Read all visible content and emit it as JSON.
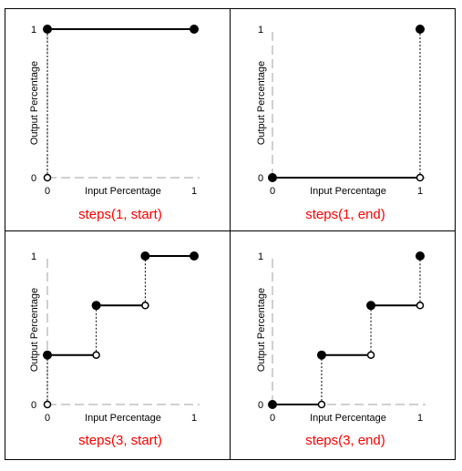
{
  "figure": {
    "colors": {
      "caption": "#ff0000",
      "lines": "#000000",
      "axis": "#a0a0a0",
      "frame": "#000000"
    },
    "panels": [
      {
        "caption": "steps(1, start)",
        "xlabel": "Input Percentage",
        "ylabel": "Output Percentage",
        "x_ticks": [
          "0",
          "1"
        ],
        "y_ticks": [
          "0",
          "1"
        ],
        "steps": 1,
        "position": "start",
        "segments": [
          [
            0,
            1,
            1
          ]
        ],
        "filled_points": [
          [
            0,
            1
          ],
          [
            1,
            1
          ]
        ],
        "open_points": [
          [
            0,
            0
          ]
        ],
        "dotted_jumps": [
          [
            0,
            0,
            1
          ]
        ]
      },
      {
        "caption": "steps(1, end)",
        "xlabel": "Input Percentage",
        "ylabel": "Output Percentage",
        "x_ticks": [
          "0",
          "1"
        ],
        "y_ticks": [
          "0",
          "1"
        ],
        "steps": 1,
        "position": "end",
        "segments": [
          [
            0,
            1,
            0
          ]
        ],
        "filled_points": [
          [
            0,
            0
          ],
          [
            1,
            1
          ]
        ],
        "open_points": [
          [
            1,
            0
          ]
        ],
        "dotted_jumps": [
          [
            1,
            0,
            1
          ]
        ]
      },
      {
        "caption": "steps(3, start)",
        "xlabel": "Input Percentage",
        "ylabel": "Output Percentage",
        "x_ticks": [
          "0",
          "1"
        ],
        "y_ticks": [
          "0",
          "1"
        ],
        "steps": 3,
        "position": "start",
        "segments": [
          [
            0,
            0.333,
            0.333
          ],
          [
            0.333,
            0.667,
            0.667
          ],
          [
            0.667,
            1,
            1
          ]
        ],
        "filled_points": [
          [
            0,
            0.333
          ],
          [
            0.333,
            0.667
          ],
          [
            0.667,
            1
          ],
          [
            1,
            1
          ]
        ],
        "open_points": [
          [
            0,
            0
          ],
          [
            0.333,
            0.333
          ],
          [
            0.667,
            0.667
          ]
        ],
        "dotted_jumps": [
          [
            0,
            0,
            0.333
          ],
          [
            0.333,
            0.333,
            0.667
          ],
          [
            0.667,
            0.667,
            1
          ]
        ]
      },
      {
        "caption": "steps(3, end)",
        "xlabel": "Input Percentage",
        "ylabel": "Output Percentage",
        "x_ticks": [
          "0",
          "1"
        ],
        "y_ticks": [
          "0",
          "1"
        ],
        "steps": 3,
        "position": "end",
        "segments": [
          [
            0,
            0.333,
            0
          ],
          [
            0.333,
            0.667,
            0.333
          ],
          [
            0.667,
            1,
            0.667
          ]
        ],
        "filled_points": [
          [
            0,
            0
          ],
          [
            0.333,
            0.333
          ],
          [
            0.667,
            0.667
          ],
          [
            1,
            1
          ]
        ],
        "open_points": [
          [
            0.333,
            0
          ],
          [
            0.667,
            0.333
          ],
          [
            1,
            0.667
          ]
        ],
        "dotted_jumps": [
          [
            0.333,
            0,
            0.333
          ],
          [
            0.667,
            0.333,
            0.667
          ],
          [
            1,
            0.667,
            1
          ]
        ]
      }
    ]
  }
}
